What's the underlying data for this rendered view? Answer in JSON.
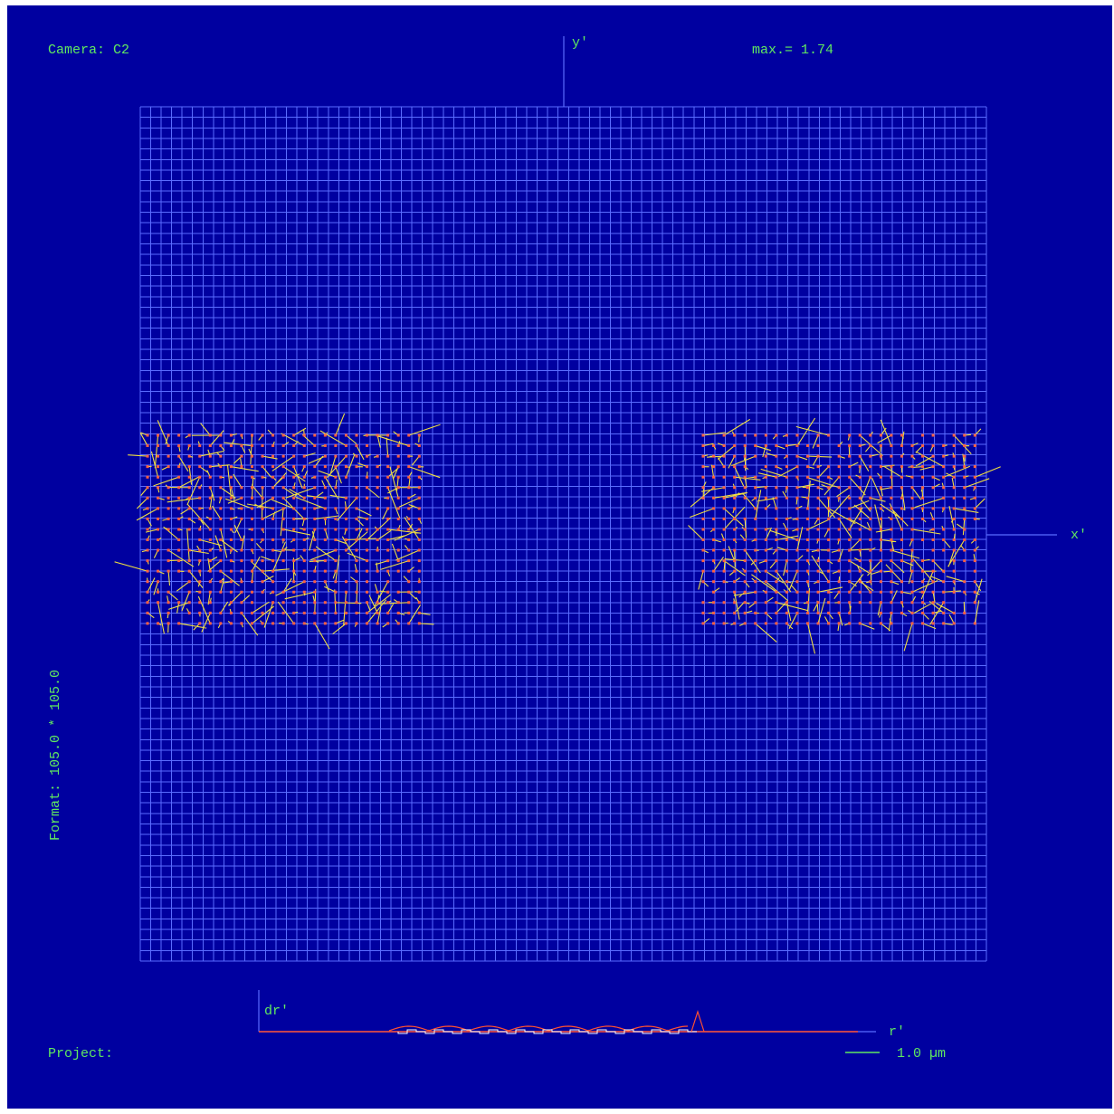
{
  "header": {
    "camera_label": "Camera: C2",
    "max_label": "max.= 1.74"
  },
  "axes": {
    "x_label": "x'",
    "y_label": "y'"
  },
  "side": {
    "format_label": "Format: 105.0 * 105.0"
  },
  "profile": {
    "y_label": "dr'",
    "x_label": "r'"
  },
  "footer": {
    "project_label": "Project:",
    "scale_label": "1.0 µm"
  },
  "colors": {
    "background": "#0000a0",
    "grid": "#5a6cff",
    "text": "#60e860",
    "vector": "#f0e040",
    "point": "#ff6040",
    "profile_line": "#ff5030"
  }
}
